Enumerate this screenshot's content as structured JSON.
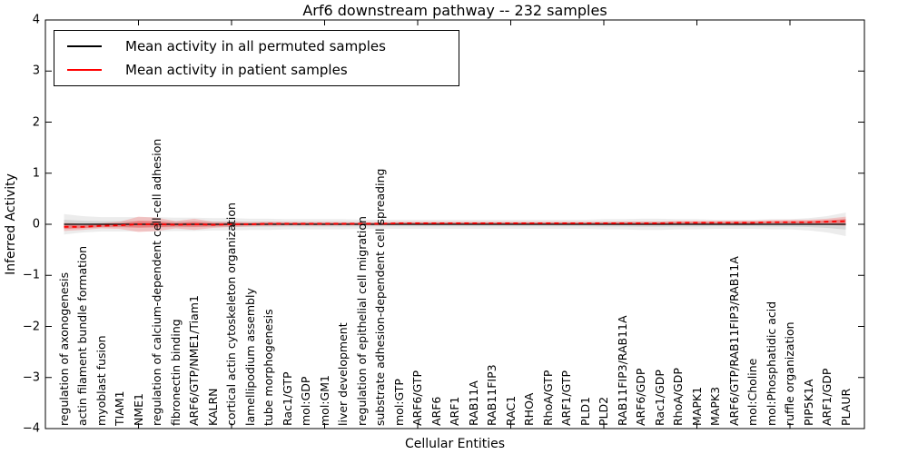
{
  "figure": {
    "title": "Arf6 downstream pathway -- 232 samples"
  },
  "legend": {
    "items": [
      {
        "label": "Mean activity in all permuted samples",
        "color": "#000000"
      },
      {
        "label": "Mean activity in patient samples",
        "color": "#ff0000"
      }
    ]
  },
  "chart_data": {
    "type": "line",
    "title": "Arf6 downstream pathway -- 232 samples",
    "xlabel": "Cellular Entities",
    "ylabel": "Inferred Activity",
    "ylim": [
      -4,
      4
    ],
    "xlim": [
      0,
      44
    ],
    "grid": false,
    "legend_position": "upper left",
    "ytick_values": [
      4,
      3,
      2,
      1,
      0,
      -1,
      -2,
      -3,
      -4
    ],
    "ytick_labels": [
      "4",
      "3",
      "2",
      "1",
      "0",
      "−1",
      "−2",
      "−3",
      "−4"
    ],
    "xtick_minor_values": [
      5,
      10,
      15,
      20,
      25,
      30,
      35,
      40
    ],
    "categories": [
      "regulation of axonogenesis",
      "actin filament bundle formation",
      "myoblast fusion",
      "TIAM1",
      "NME1",
      "regulation of calcium-dependent cell-cell adhesion",
      "fibronectin binding",
      "ARF6/GTP/NME1/Tiam1",
      "KALRN",
      "cortical actin cytoskeleton organization",
      "lamellipodium assembly",
      "tube morphogenesis",
      "Rac1/GTP",
      "mol:GDP",
      "mol:GM1",
      "liver development",
      "regulation of epithelial cell migration",
      "substrate adhesion-dependent cell spreading",
      "mol:GTP",
      "ARF6/GTP",
      "ARF6",
      "ARF1",
      "RAB11A",
      "RAB11FIP3",
      "RAC1",
      "RHOA",
      "RhoA/GTP",
      "ARF1/GTP",
      "PLD1",
      "PLD2",
      "RAB11FIP3/RAB11A",
      "ARF6/GDP",
      "Rac1/GDP",
      "RhoA/GDP",
      "MAPK1",
      "MAPK3",
      "ARF6/GTP/RAB11FIP3/RAB11A",
      "mol:Choline",
      "mol:Phosphatidic acid",
      "ruffle organization",
      "PIP5K1A",
      "ARF1/GDP",
      "PLAUR"
    ],
    "series": [
      {
        "name": "Mean activity in all permuted samples",
        "color": "#000000",
        "style": "solid",
        "values": [
          0,
          0,
          0,
          0,
          0,
          0,
          0,
          0,
          0,
          0,
          0,
          0,
          0,
          0,
          0,
          0,
          0,
          0,
          0,
          0,
          0,
          0,
          0,
          0,
          0,
          0,
          0,
          0,
          0,
          0,
          0,
          0,
          0,
          0,
          0,
          0,
          0,
          0,
          0,
          0,
          0,
          0,
          0
        ]
      },
      {
        "name": "Mean activity in patient samples",
        "color": "#ff0000",
        "style": "dashed",
        "values": [
          -0.05,
          -0.05,
          -0.03,
          -0.02,
          0,
          0,
          -0.01,
          0,
          -0.01,
          0,
          0,
          0.01,
          0.01,
          0.01,
          0.01,
          0.01,
          0.01,
          0.01,
          0.02,
          0.02,
          0.02,
          0.02,
          0.02,
          0.02,
          0.02,
          0.02,
          0.02,
          0.02,
          0.02,
          0.02,
          0.02,
          0.02,
          0.02,
          0.03,
          0.03,
          0.03,
          0.03,
          0.03,
          0.04,
          0.04,
          0.04,
          0.05,
          0.06
        ]
      }
    ],
    "bands": [
      {
        "name": "permuted-confidence-band",
        "series": 0,
        "color": "#888888",
        "opacity_outer": 0.16,
        "opacity_inner": 0.22,
        "half_widths": [
          0.2,
          0.16,
          0.14,
          0.14,
          0.14,
          0.14,
          0.13,
          0.13,
          0.12,
          0.12,
          0.11,
          0.11,
          0.1,
          0.1,
          0.1,
          0.1,
          0.09,
          0.09,
          0.09,
          0.09,
          0.09,
          0.09,
          0.09,
          0.09,
          0.09,
          0.09,
          0.09,
          0.09,
          0.09,
          0.1,
          0.1,
          0.11,
          0.11,
          0.1,
          0.1,
          0.09,
          0.09,
          0.09,
          0.1,
          0.1,
          0.12,
          0.16,
          0.23
        ]
      },
      {
        "name": "patient-confidence-band",
        "series": 1,
        "color": "#ff0000",
        "opacity_outer": 0.18,
        "opacity_inner": 0.26,
        "half_widths": [
          0.08,
          0.06,
          0.05,
          0.07,
          0.15,
          0.13,
          0.07,
          0.11,
          0.06,
          0.05,
          0.04,
          0.04,
          0.035,
          0.035,
          0.035,
          0.03,
          0.03,
          0.03,
          0.03,
          0.03,
          0.03,
          0.03,
          0.03,
          0.03,
          0.03,
          0.03,
          0.03,
          0.03,
          0.03,
          0.03,
          0.035,
          0.035,
          0.035,
          0.035,
          0.035,
          0.035,
          0.04,
          0.04,
          0.04,
          0.045,
          0.05,
          0.06,
          0.09
        ]
      }
    ]
  }
}
